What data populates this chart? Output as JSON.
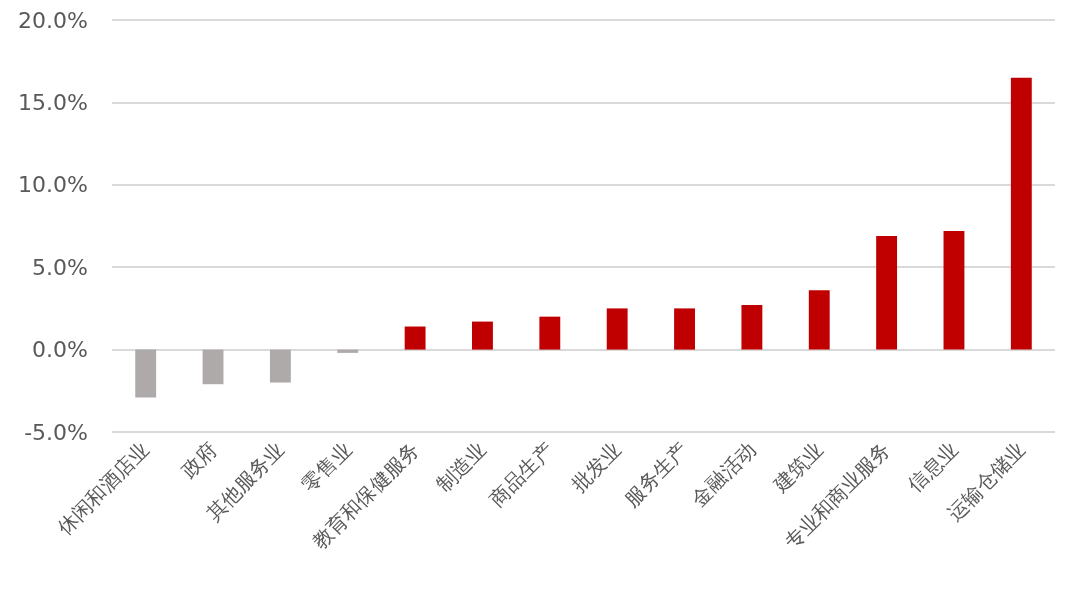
{
  "chart_data": {
    "type": "bar",
    "categories": [
      "休闲和酒店业",
      "政府",
      "其他服务业",
      "零售业",
      "教育和保健服务",
      "制造业",
      "商品生产",
      "批发业",
      "服务生产",
      "金融活动",
      "建筑业",
      "专业和商业服务",
      "信息业",
      "运输仓储业"
    ],
    "values": [
      -2.9,
      -2.1,
      -2.0,
      -0.2,
      1.4,
      1.7,
      2.0,
      2.5,
      2.5,
      2.7,
      3.6,
      6.9,
      7.2,
      16.5
    ],
    "colors": [
      "#aeaaaa",
      "#aeaaaa",
      "#aeaaaa",
      "#aeaaaa",
      "#c00000",
      "#c00000",
      "#c00000",
      "#c00000",
      "#c00000",
      "#c00000",
      "#c00000",
      "#c00000",
      "#c00000",
      "#c00000"
    ],
    "ylim": [
      -5,
      20
    ],
    "yticks": [
      {
        "value": -5,
        "label": "-5.0%"
      },
      {
        "value": 0,
        "label": "0.0%"
      },
      {
        "value": 5,
        "label": "5.0%"
      },
      {
        "value": 10,
        "label": "10.0%"
      },
      {
        "value": 15,
        "label": "15.0%"
      },
      {
        "value": 20,
        "label": "20.0%"
      }
    ],
    "grid": "y"
  }
}
